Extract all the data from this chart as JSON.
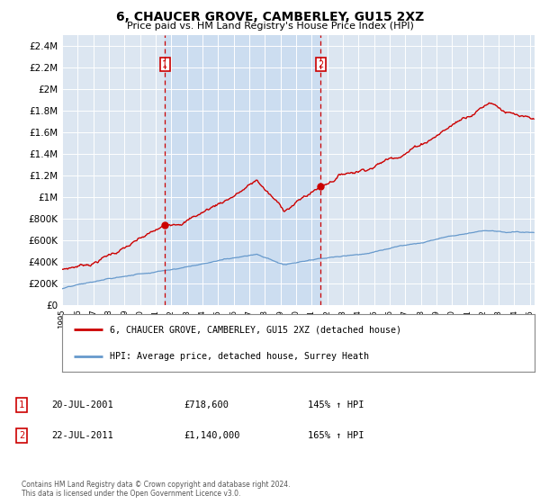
{
  "title": "6, CHAUCER GROVE, CAMBERLEY, GU15 2XZ",
  "subtitle": "Price paid vs. HM Land Registry's House Price Index (HPI)",
  "legend_line1": "6, CHAUCER GROVE, CAMBERLEY, GU15 2XZ (detached house)",
  "legend_line2": "HPI: Average price, detached house, Surrey Heath",
  "annotation1_date": "20-JUL-2001",
  "annotation1_price": "£718,600",
  "annotation1_hpi": "145% ↑ HPI",
  "annotation2_date": "22-JUL-2011",
  "annotation2_price": "£1,140,000",
  "annotation2_hpi": "165% ↑ HPI",
  "footer": "Contains HM Land Registry data © Crown copyright and database right 2024.\nThis data is licensed under the Open Government Licence v3.0.",
  "house_color": "#cc0000",
  "hpi_color": "#6699cc",
  "plot_bg_color": "#dce6f1",
  "shade_color": "#ccddf0",
  "vline_color": "#cc0000",
  "ylim": [
    0,
    2500000
  ],
  "ytick_labels": [
    "£0",
    "£200K",
    "£400K",
    "£600K",
    "£800K",
    "£1M",
    "£1.2M",
    "£1.4M",
    "£1.6M",
    "£1.8M",
    "£2M",
    "£2.2M",
    "£2.4M"
  ],
  "ytick_values": [
    0,
    200000,
    400000,
    600000,
    800000,
    1000000,
    1200000,
    1400000,
    1600000,
    1800000,
    2000000,
    2200000,
    2400000
  ],
  "sale1_year": 2001.583,
  "sale2_year": 2011.583,
  "sale1_price": 718600,
  "sale2_price": 1140000,
  "xstart": 1995,
  "xend": 2025
}
